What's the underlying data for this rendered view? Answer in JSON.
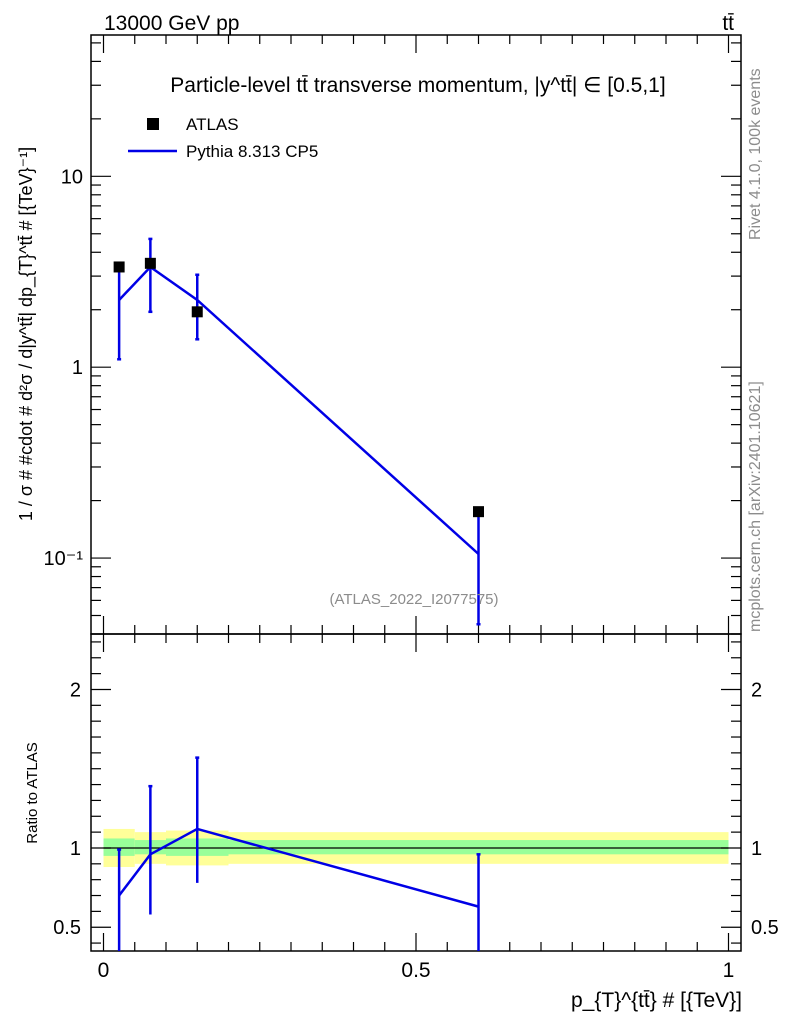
{
  "header": {
    "left": "13000 GeV pp",
    "right": "tt̄"
  },
  "side_labels": {
    "rivet": "Rivet 4.1.0,  100k events",
    "mcplots": "mcplots.cern.ch [arXiv:2401.10621]"
  },
  "watermark": "(ATLAS_2022_I2077575)",
  "chart_data": {
    "type": "line",
    "title": "Particle-level tt̄ transverse momentum, |y^tt̄| ∈ [0.5,1]",
    "xlabel": "p_{T}^{tt̄} # [{TeV}]",
    "ylabel": "1 / σ # #cdot # d²σ / d|y^tt̄| dp_{T}^tt̄ # [{TeV}⁻¹]",
    "ratio_ylabel": "Ratio to ATLAS",
    "xlim": [
      -0.02,
      1.02
    ],
    "ylim_log": [
      0.04,
      55
    ],
    "ratio_ylim": [
      0.35,
      2.35
    ],
    "x_ticks": [
      "0",
      "0.5",
      "1"
    ],
    "y_ticks": [
      "10⁻¹",
      "1",
      "10"
    ],
    "ratio_ticks": [
      "0.5",
      "1",
      "2"
    ],
    "legend": {
      "placement": "top-left",
      "entries": [
        "ATLAS",
        "Pythia 8.313 CP5"
      ]
    },
    "bins": [
      [
        0.0,
        0.05
      ],
      [
        0.05,
        0.1
      ],
      [
        0.1,
        0.2
      ],
      [
        0.2,
        1.0
      ]
    ],
    "series": [
      {
        "name": "ATLAS",
        "x": [
          0.025,
          0.075,
          0.15,
          0.6
        ],
        "values": [
          3.35,
          3.5,
          1.95,
          0.175
        ]
      },
      {
        "name": "Pythia 8.313 CP5",
        "x": [
          0.025,
          0.075,
          0.15,
          0.6
        ],
        "values": [
          2.25,
          3.35,
          2.25,
          0.105
        ],
        "err_lo": [
          1.1,
          1.95,
          1.4,
          0.045
        ],
        "err_hi": [
          3.3,
          4.7,
          3.05,
          0.175
        ]
      }
    ],
    "ratio": {
      "values": [
        0.7,
        0.96,
        1.12,
        0.63
      ],
      "err_lo": [
        0.3,
        0.58,
        0.78,
        0.3
      ],
      "err_hi": [
        0.99,
        1.39,
        1.57,
        0.96
      ],
      "band_stat": [
        [
          0.95,
          1.06
        ],
        [
          0.96,
          1.05
        ],
        [
          0.95,
          1.06
        ],
        [
          0.96,
          1.05
        ]
      ],
      "band_total": [
        [
          0.88,
          1.12
        ],
        [
          0.9,
          1.1
        ],
        [
          0.89,
          1.11
        ],
        [
          0.9,
          1.1
        ]
      ]
    }
  }
}
